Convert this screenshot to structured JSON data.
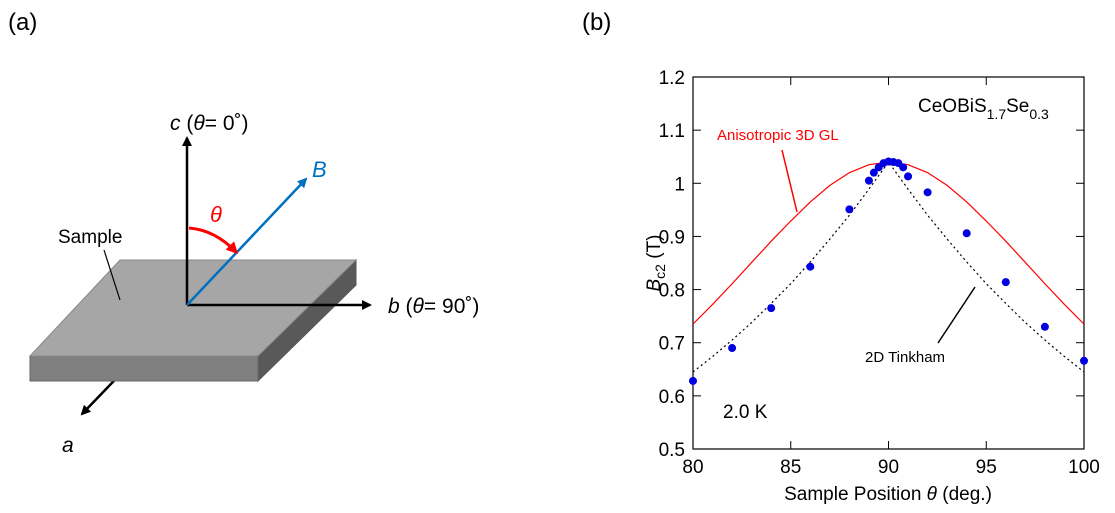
{
  "panel_a": {
    "label": "(a)",
    "c_axis": [
      "c",
      " (",
      "θ",
      "= 0˚)"
    ],
    "b_axis": [
      "b",
      " (",
      "θ",
      "= 90˚)"
    ],
    "a_axis": "a",
    "field": "B",
    "angle": "θ",
    "sample": "Sample"
  },
  "chart_data": {
    "type": "scatter",
    "panel_label": "(b)",
    "x_label": [
      "Sample Position ",
      "θ",
      " (deg.)"
    ],
    "y_label": [
      "B",
      "c2",
      " (T)"
    ],
    "compound": [
      "CeOBiS",
      "1.7",
      "Se",
      "0.3"
    ],
    "temperature": "2.0 K",
    "xlim": [
      80,
      100
    ],
    "ylim": [
      0.5,
      1.2
    ],
    "xticks": [
      80,
      85,
      90,
      95,
      100
    ],
    "yticks": [
      0.5,
      0.6,
      0.7,
      0.8,
      0.9,
      1,
      1.1,
      1.2
    ],
    "series": [
      {
        "name": "Anisotropic 3D GL",
        "color": "#ff0000",
        "mode": "line",
        "dashed": false,
        "x": [
          80,
          81,
          82,
          83,
          84,
          85,
          86,
          87,
          88,
          89,
          90,
          91,
          92,
          93,
          94,
          95,
          96,
          97,
          98,
          99,
          100
        ],
        "values": [
          0.735,
          0.772,
          0.811,
          0.851,
          0.891,
          0.929,
          0.965,
          0.996,
          1.02,
          1.035,
          1.04,
          1.035,
          1.02,
          0.996,
          0.965,
          0.929,
          0.891,
          0.851,
          0.811,
          0.772,
          0.735
        ]
      },
      {
        "name": "2D Tinkham",
        "color": "#000000",
        "mode": "line",
        "dashed": true,
        "x": [
          80,
          81,
          82,
          83,
          84,
          85,
          86,
          87,
          88,
          89,
          90,
          91,
          92,
          93,
          94,
          95,
          96,
          97,
          98,
          99,
          100
        ],
        "values": [
          0.645,
          0.674,
          0.705,
          0.738,
          0.774,
          0.811,
          0.852,
          0.895,
          0.94,
          0.989,
          1.04,
          0.989,
          0.94,
          0.895,
          0.852,
          0.811,
          0.774,
          0.738,
          0.705,
          0.674,
          0.645
        ]
      },
      {
        "color": "#0000e0",
        "mode": "markers",
        "x": [
          80,
          82,
          84,
          86,
          88,
          89,
          89.25,
          89.5,
          89.75,
          90,
          90.25,
          90.5,
          90.75,
          91,
          92,
          94,
          96,
          98,
          100
        ],
        "values": [
          0.628,
          0.69,
          0.765,
          0.843,
          0.951,
          1.005,
          1.02,
          1.03,
          1.038,
          1.041,
          1.04,
          1.038,
          1.03,
          1.013,
          0.983,
          0.906,
          0.814,
          0.73,
          0.666
        ]
      }
    ]
  }
}
